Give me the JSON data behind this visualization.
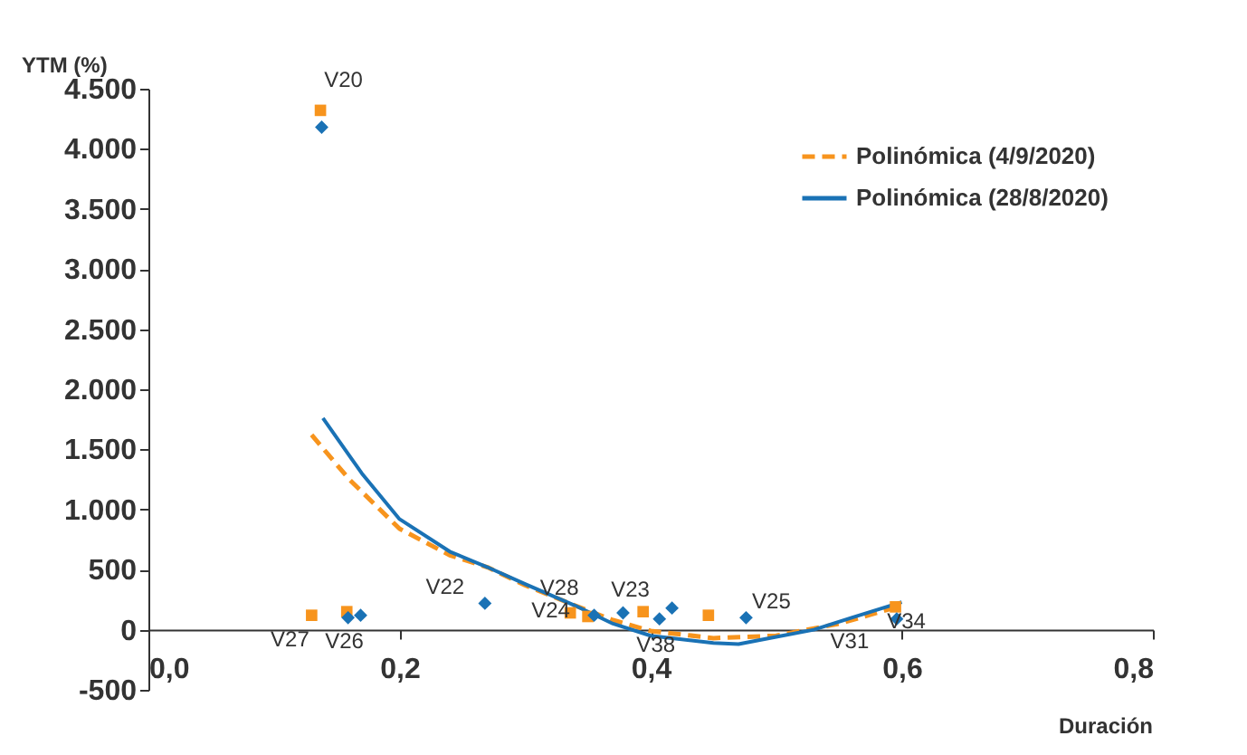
{
  "chart_data": {
    "type": "scatter",
    "ylabel": "YTM (%)",
    "xlabel": "Duración",
    "xlim": [
      0,
      0.8
    ],
    "xticks": [
      {
        "value": 0,
        "label": "0,0"
      },
      {
        "value": 0.2,
        "label": "0,2"
      },
      {
        "value": 0.4,
        "label": "0,4"
      },
      {
        "value": 0.6,
        "label": "0,6"
      },
      {
        "value": 0.8,
        "label": "0,8"
      }
    ],
    "ylim": [
      -500,
      4500
    ],
    "yticks": [
      -500,
      0,
      500,
      {
        "value": 1000,
        "label": "1.000"
      },
      {
        "value": 1500,
        "label": "1.500"
      },
      {
        "value": 2000,
        "label": "2.000"
      },
      {
        "value": 2500,
        "label": "2.500"
      },
      {
        "value": 3000,
        "label": "3.000"
      },
      {
        "value": 3500,
        "label": "3.500"
      },
      {
        "value": 4000,
        "label": "4.000"
      },
      {
        "value": 4500,
        "label": "4.500"
      }
    ],
    "grid": false,
    "legend": "top right",
    "series": [
      {
        "type": "scatter",
        "marker": "square",
        "color": "#f7941d",
        "x": [
          0.137,
          0.13,
          0.158,
          0.336,
          0.35,
          0.394,
          0.446,
          0.595
        ],
        "values": [
          4320,
          120,
          150,
          140,
          110,
          150,
          120,
          190
        ]
      },
      {
        "type": "scatter",
        "marker": "diamond",
        "color": "#1a72b5",
        "x": [
          0.138,
          0.159,
          0.169,
          0.268,
          0.355,
          0.378,
          0.407,
          0.417,
          0.476,
          0.596
        ],
        "values": [
          4180,
          100,
          120,
          220,
          120,
          140,
          90,
          180,
          100,
          90
        ]
      },
      {
        "type": "line",
        "name": "Polinómica (4/9/2020)",
        "line_style": "dashed",
        "color": "#f7941d",
        "x": [
          0.13,
          0.16,
          0.2,
          0.24,
          0.27,
          0.3,
          0.34,
          0.37,
          0.4,
          0.45,
          0.5,
          0.55,
          0.6
        ],
        "values": [
          1620,
          1250,
          840,
          620,
          520,
          370,
          200,
          80,
          -10,
          -70,
          -50,
          50,
          200
        ]
      },
      {
        "type": "line",
        "name": "Polinómica (28/8/2020)",
        "line_style": "solid",
        "color": "#1a72b5",
        "x": [
          0.139,
          0.17,
          0.2,
          0.24,
          0.27,
          0.3,
          0.34,
          0.37,
          0.4,
          0.45,
          0.47,
          0.5,
          0.53,
          0.56,
          0.6
        ],
        "values": [
          1760,
          1300,
          920,
          650,
          520,
          380,
          200,
          50,
          -50,
          -110,
          -120,
          -60,
          0,
          100,
          230
        ]
      }
    ],
    "annotations": [
      {
        "text": "V20",
        "x": 0.138,
        "y": 4180
      },
      {
        "text": "V27",
        "x": 0.13,
        "y": 120
      },
      {
        "text": "V26",
        "x": 0.159,
        "y": 100
      },
      {
        "text": "V22",
        "x": 0.268,
        "y": 220
      },
      {
        "text": "V28",
        "x": 0.336,
        "y": 140
      },
      {
        "text": "V24",
        "x": 0.355,
        "y": 120
      },
      {
        "text": "V23",
        "x": 0.378,
        "y": 140
      },
      {
        "text": "V38",
        "x": 0.407,
        "y": 90
      },
      {
        "text": "V25",
        "x": 0.476,
        "y": 100
      },
      {
        "text": "V31",
        "x": 0.596,
        "y": 90
      },
      {
        "text": "V34",
        "x": 0.595,
        "y": 190
      }
    ]
  }
}
